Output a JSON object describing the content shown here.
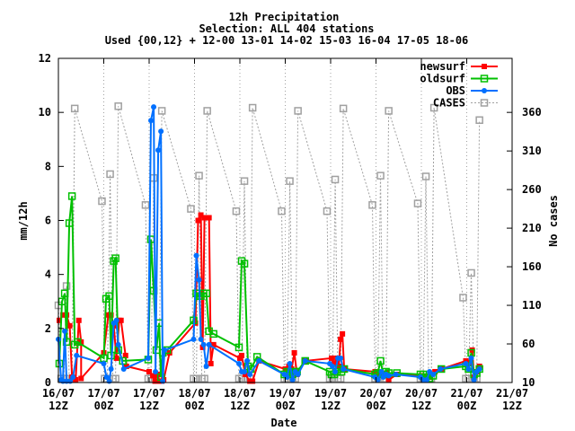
{
  "chart_data": {
    "type": "line",
    "title_lines": [
      "12h Precipitation",
      "Selection: ALL    404 stations",
      "Used {00,12} + 12-00 13-01 14-02 15-03 16-04 17-05 18-06"
    ],
    "xlabel": "Date",
    "ylabel": "mm/12h",
    "y2label": "No cases",
    "ylim": [
      0,
      12
    ],
    "y_ticks": [
      "0",
      "2",
      "4",
      "6",
      "8",
      "10",
      "12"
    ],
    "y2lim": [
      10,
      430
    ],
    "y2_ticks": [
      "10",
      "60",
      "110",
      "160",
      "210",
      "260",
      "310",
      "360"
    ],
    "xlim": [
      0,
      10
    ],
    "x_ticks": [
      [
        "16/07",
        "12Z"
      ],
      [
        "17/07",
        "00Z"
      ],
      [
        "17/07",
        "12Z"
      ],
      [
        "18/07",
        "00Z"
      ],
      [
        "18/07",
        "12Z"
      ],
      [
        "19/07",
        "00Z"
      ],
      [
        "19/07",
        "12Z"
      ],
      [
        "20/07",
        "00Z"
      ],
      [
        "20/07",
        "12Z"
      ],
      [
        "21/07",
        "00Z"
      ],
      [
        "21/07",
        "12Z"
      ]
    ],
    "grid": "vertical dotted",
    "legend_position": "top-right",
    "series": [
      {
        "name": "newsurf",
        "color": "#ff0000",
        "marker": "filled-square",
        "points": [
          [
            0.02,
            2.3
          ],
          [
            0.1,
            2.5
          ],
          [
            0.18,
            2.5
          ],
          [
            0.25,
            2.1
          ],
          [
            0.3,
            0.2
          ],
          [
            0.38,
            0.1
          ],
          [
            0.45,
            2.3
          ],
          [
            0.5,
            1.5
          ],
          [
            0.5,
            0.15
          ],
          [
            1.0,
            1.1
          ],
          [
            1.1,
            2.5
          ],
          [
            1.16,
            2.5
          ],
          [
            1.22,
            2.1
          ],
          [
            1.28,
            0.9
          ],
          [
            1.34,
            2.3
          ],
          [
            1.38,
            2.3
          ],
          [
            1.48,
            1.0
          ],
          [
            1.5,
            0.6
          ],
          [
            2.0,
            0.4
          ],
          [
            2.08,
            0.25
          ],
          [
            2.13,
            0.05
          ],
          [
            2.18,
            0.3
          ],
          [
            2.22,
            0.05
          ],
          [
            2.28,
            0.05
          ],
          [
            2.32,
            0.1
          ],
          [
            2.45,
            1.1
          ],
          [
            3.02,
            2.2
          ],
          [
            3.08,
            6.0
          ],
          [
            3.14,
            6.2
          ],
          [
            3.18,
            1.3
          ],
          [
            3.22,
            6.1
          ],
          [
            3.26,
            6.1
          ],
          [
            3.32,
            6.1
          ],
          [
            3.36,
            0.7
          ],
          [
            3.42,
            1.4
          ],
          [
            4.0,
            0.9
          ],
          [
            4.04,
            1.0
          ],
          [
            4.12,
            0.3
          ],
          [
            4.22,
            0.05
          ],
          [
            4.28,
            0.05
          ],
          [
            4.42,
            0.8
          ],
          [
            5.0,
            0.5
          ],
          [
            5.08,
            0.6
          ],
          [
            5.14,
            0.5
          ],
          [
            5.2,
            1.1
          ],
          [
            5.26,
            0.3
          ],
          [
            5.44,
            0.8
          ],
          [
            6.02,
            0.9
          ],
          [
            6.08,
            0.7
          ],
          [
            6.14,
            0.9
          ],
          [
            6.18,
            0.6
          ],
          [
            6.22,
            1.6
          ],
          [
            6.26,
            1.8
          ],
          [
            6.3,
            0.5
          ],
          [
            6.98,
            0.4
          ],
          [
            7.04,
            0.35
          ],
          [
            7.12,
            0.3
          ],
          [
            7.22,
            0.35
          ],
          [
            7.28,
            0.1
          ],
          [
            7.46,
            0.3
          ],
          [
            8.0,
            0.25
          ],
          [
            8.04,
            0.2
          ],
          [
            8.12,
            0.1
          ],
          [
            8.18,
            0.2
          ],
          [
            8.3,
            0.4
          ],
          [
            8.44,
            0.5
          ],
          [
            8.98,
            0.8
          ],
          [
            9.04,
            0.7
          ],
          [
            9.12,
            1.2
          ],
          [
            9.16,
            0.2
          ],
          [
            9.22,
            0.4
          ],
          [
            9.28,
            0.6
          ]
        ]
      },
      {
        "name": "oldsurf",
        "color": "#00c000",
        "marker": "hollow-square",
        "points": [
          [
            0.02,
            0.7
          ],
          [
            0.08,
            3.0
          ],
          [
            0.14,
            3.3
          ],
          [
            0.18,
            1.5
          ],
          [
            0.24,
            5.9
          ],
          [
            0.3,
            6.9
          ],
          [
            0.36,
            1.4
          ],
          [
            0.42,
            1.5
          ],
          [
            1.0,
            0.9
          ],
          [
            1.05,
            3.1
          ],
          [
            1.12,
            3.2
          ],
          [
            1.16,
            1.0
          ],
          [
            1.22,
            4.5
          ],
          [
            1.26,
            4.6
          ],
          [
            1.32,
            1.2
          ],
          [
            1.42,
            0.8
          ],
          [
            1.98,
            0.85
          ],
          [
            2.04,
            5.3
          ],
          [
            2.1,
            3.4
          ],
          [
            2.16,
            1.2
          ],
          [
            2.22,
            2.2
          ],
          [
            2.26,
            0.2
          ],
          [
            2.3,
            1.1
          ],
          [
            2.4,
            1.2
          ],
          [
            2.98,
            2.3
          ],
          [
            3.04,
            3.3
          ],
          [
            3.1,
            3.2
          ],
          [
            3.14,
            3.2
          ],
          [
            3.2,
            3.3
          ],
          [
            3.26,
            3.3
          ],
          [
            3.32,
            1.9
          ],
          [
            3.42,
            1.8
          ],
          [
            3.98,
            1.3
          ],
          [
            4.04,
            4.5
          ],
          [
            4.1,
            4.4
          ],
          [
            4.18,
            0.6
          ],
          [
            4.24,
            0.5
          ],
          [
            4.38,
            0.95
          ],
          [
            4.98,
            0.3
          ],
          [
            5.04,
            0.4
          ],
          [
            5.1,
            0.35
          ],
          [
            5.16,
            0.3
          ],
          [
            5.22,
            0.4
          ],
          [
            5.26,
            0.4
          ],
          [
            5.44,
            0.8
          ],
          [
            5.98,
            0.4
          ],
          [
            6.02,
            0.3
          ],
          [
            6.08,
            0.3
          ],
          [
            6.14,
            0.4
          ],
          [
            6.18,
            0.5
          ],
          [
            6.24,
            0.4
          ],
          [
            6.3,
            0.5
          ],
          [
            6.98,
            0.3
          ],
          [
            7.04,
            0.35
          ],
          [
            7.1,
            0.8
          ],
          [
            7.16,
            0.3
          ],
          [
            7.22,
            0.4
          ],
          [
            7.28,
            0.35
          ],
          [
            7.46,
            0.35
          ],
          [
            7.98,
            0.3
          ],
          [
            8.04,
            0.3
          ],
          [
            8.1,
            0.2
          ],
          [
            8.18,
            0.15
          ],
          [
            8.26,
            0.25
          ],
          [
            8.44,
            0.5
          ],
          [
            8.98,
            0.6
          ],
          [
            9.04,
            0.5
          ],
          [
            9.1,
            1.1
          ],
          [
            9.16,
            0.3
          ],
          [
            9.22,
            0.35
          ],
          [
            9.28,
            0.5
          ]
        ]
      },
      {
        "name": "OBS",
        "color": "#0070ff",
        "marker": "filled-circle",
        "points": [
          [
            0.0,
            1.6
          ],
          [
            0.06,
            0.1
          ],
          [
            0.1,
            0.05
          ],
          [
            0.14,
            1.9
          ],
          [
            0.18,
            0.05
          ],
          [
            0.26,
            0.05
          ],
          [
            0.32,
            0.2
          ],
          [
            0.4,
            1.0
          ],
          [
            1.0,
            0.7
          ],
          [
            1.06,
            0.2
          ],
          [
            1.12,
            0.05
          ],
          [
            1.16,
            0.5
          ],
          [
            1.22,
            2.2
          ],
          [
            1.28,
            2.3
          ],
          [
            1.32,
            1.4
          ],
          [
            1.44,
            0.5
          ],
          [
            1.98,
            0.9
          ],
          [
            2.04,
            9.7
          ],
          [
            2.1,
            10.2
          ],
          [
            2.14,
            0.4
          ],
          [
            2.2,
            8.6
          ],
          [
            2.26,
            9.3
          ],
          [
            2.3,
            0.05
          ],
          [
            2.34,
            1.2
          ],
          [
            2.98,
            1.6
          ],
          [
            3.04,
            4.7
          ],
          [
            3.1,
            3.8
          ],
          [
            3.14,
            1.6
          ],
          [
            3.2,
            1.4
          ],
          [
            3.26,
            0.6
          ],
          [
            3.32,
            1.4
          ],
          [
            3.98,
            0.7
          ],
          [
            4.04,
            0.4
          ],
          [
            4.1,
            0.4
          ],
          [
            4.16,
            0.8
          ],
          [
            4.22,
            0.3
          ],
          [
            4.42,
            0.8
          ],
          [
            4.98,
            0.3
          ],
          [
            5.04,
            0.2
          ],
          [
            5.1,
            0.7
          ],
          [
            5.16,
            0.1
          ],
          [
            5.22,
            0.4
          ],
          [
            5.28,
            0.3
          ],
          [
            5.44,
            0.8
          ],
          [
            5.98,
            0.7
          ],
          [
            6.04,
            0.6
          ],
          [
            6.1,
            0.4
          ],
          [
            6.16,
            0.9
          ],
          [
            6.22,
            0.9
          ],
          [
            6.28,
            0.5
          ],
          [
            6.98,
            0.2
          ],
          [
            7.04,
            0.1
          ],
          [
            7.12,
            0.4
          ],
          [
            7.16,
            0.2
          ],
          [
            7.22,
            0.3
          ],
          [
            7.28,
            0.25
          ],
          [
            7.44,
            0.3
          ],
          [
            7.98,
            0.2
          ],
          [
            8.04,
            0.1
          ],
          [
            8.12,
            0.1
          ],
          [
            8.18,
            0.4
          ],
          [
            8.26,
            0.3
          ],
          [
            8.42,
            0.5
          ],
          [
            8.98,
            0.7
          ],
          [
            9.04,
            0.5
          ],
          [
            9.1,
            0.9
          ],
          [
            9.16,
            0.1
          ],
          [
            9.22,
            0.4
          ],
          [
            9.28,
            0.5
          ]
        ]
      },
      {
        "name": "CASES",
        "color": "#a0a0a0",
        "marker": "hollow-square",
        "axis": "y2",
        "line": "dotted",
        "points": [
          [
            0.0,
            110
          ],
          [
            0.06,
            15
          ],
          [
            0.12,
            15
          ],
          [
            0.18,
            135
          ],
          [
            0.24,
            15
          ],
          [
            0.3,
            15
          ],
          [
            0.36,
            365
          ],
          [
            0.96,
            245
          ],
          [
            1.02,
            15
          ],
          [
            1.08,
            15
          ],
          [
            1.14,
            280
          ],
          [
            1.2,
            15
          ],
          [
            1.26,
            15
          ],
          [
            1.32,
            368
          ],
          [
            1.92,
            240
          ],
          [
            1.98,
            15
          ],
          [
            2.04,
            15
          ],
          [
            2.1,
            275
          ],
          [
            2.16,
            15
          ],
          [
            2.22,
            15
          ],
          [
            2.28,
            362
          ],
          [
            2.92,
            235
          ],
          [
            2.98,
            15
          ],
          [
            3.04,
            15
          ],
          [
            3.1,
            278
          ],
          [
            3.16,
            15
          ],
          [
            3.22,
            15
          ],
          [
            3.28,
            362
          ],
          [
            3.92,
            232
          ],
          [
            3.98,
            15
          ],
          [
            4.04,
            15
          ],
          [
            4.1,
            271
          ],
          [
            4.16,
            15
          ],
          [
            4.22,
            15
          ],
          [
            4.28,
            366
          ],
          [
            4.92,
            232
          ],
          [
            4.98,
            15
          ],
          [
            5.04,
            15
          ],
          [
            5.1,
            271
          ],
          [
            5.16,
            15
          ],
          [
            5.22,
            15
          ],
          [
            5.28,
            362
          ],
          [
            5.92,
            232
          ],
          [
            5.98,
            15
          ],
          [
            6.04,
            15
          ],
          [
            6.1,
            273
          ],
          [
            6.16,
            15
          ],
          [
            6.22,
            15
          ],
          [
            6.28,
            365
          ],
          [
            6.92,
            240
          ],
          [
            6.98,
            15
          ],
          [
            7.04,
            15
          ],
          [
            7.1,
            278
          ],
          [
            7.16,
            15
          ],
          [
            7.22,
            15
          ],
          [
            7.28,
            362
          ],
          [
            7.92,
            242
          ],
          [
            7.98,
            15
          ],
          [
            8.04,
            15
          ],
          [
            8.1,
            277
          ],
          [
            8.16,
            15
          ],
          [
            8.22,
            15
          ],
          [
            8.28,
            366
          ],
          [
            8.92,
            120
          ],
          [
            8.98,
            15
          ],
          [
            9.04,
            15
          ],
          [
            9.1,
            152
          ],
          [
            9.16,
            15
          ],
          [
            9.22,
            15
          ],
          [
            9.28,
            350
          ]
        ]
      }
    ]
  }
}
